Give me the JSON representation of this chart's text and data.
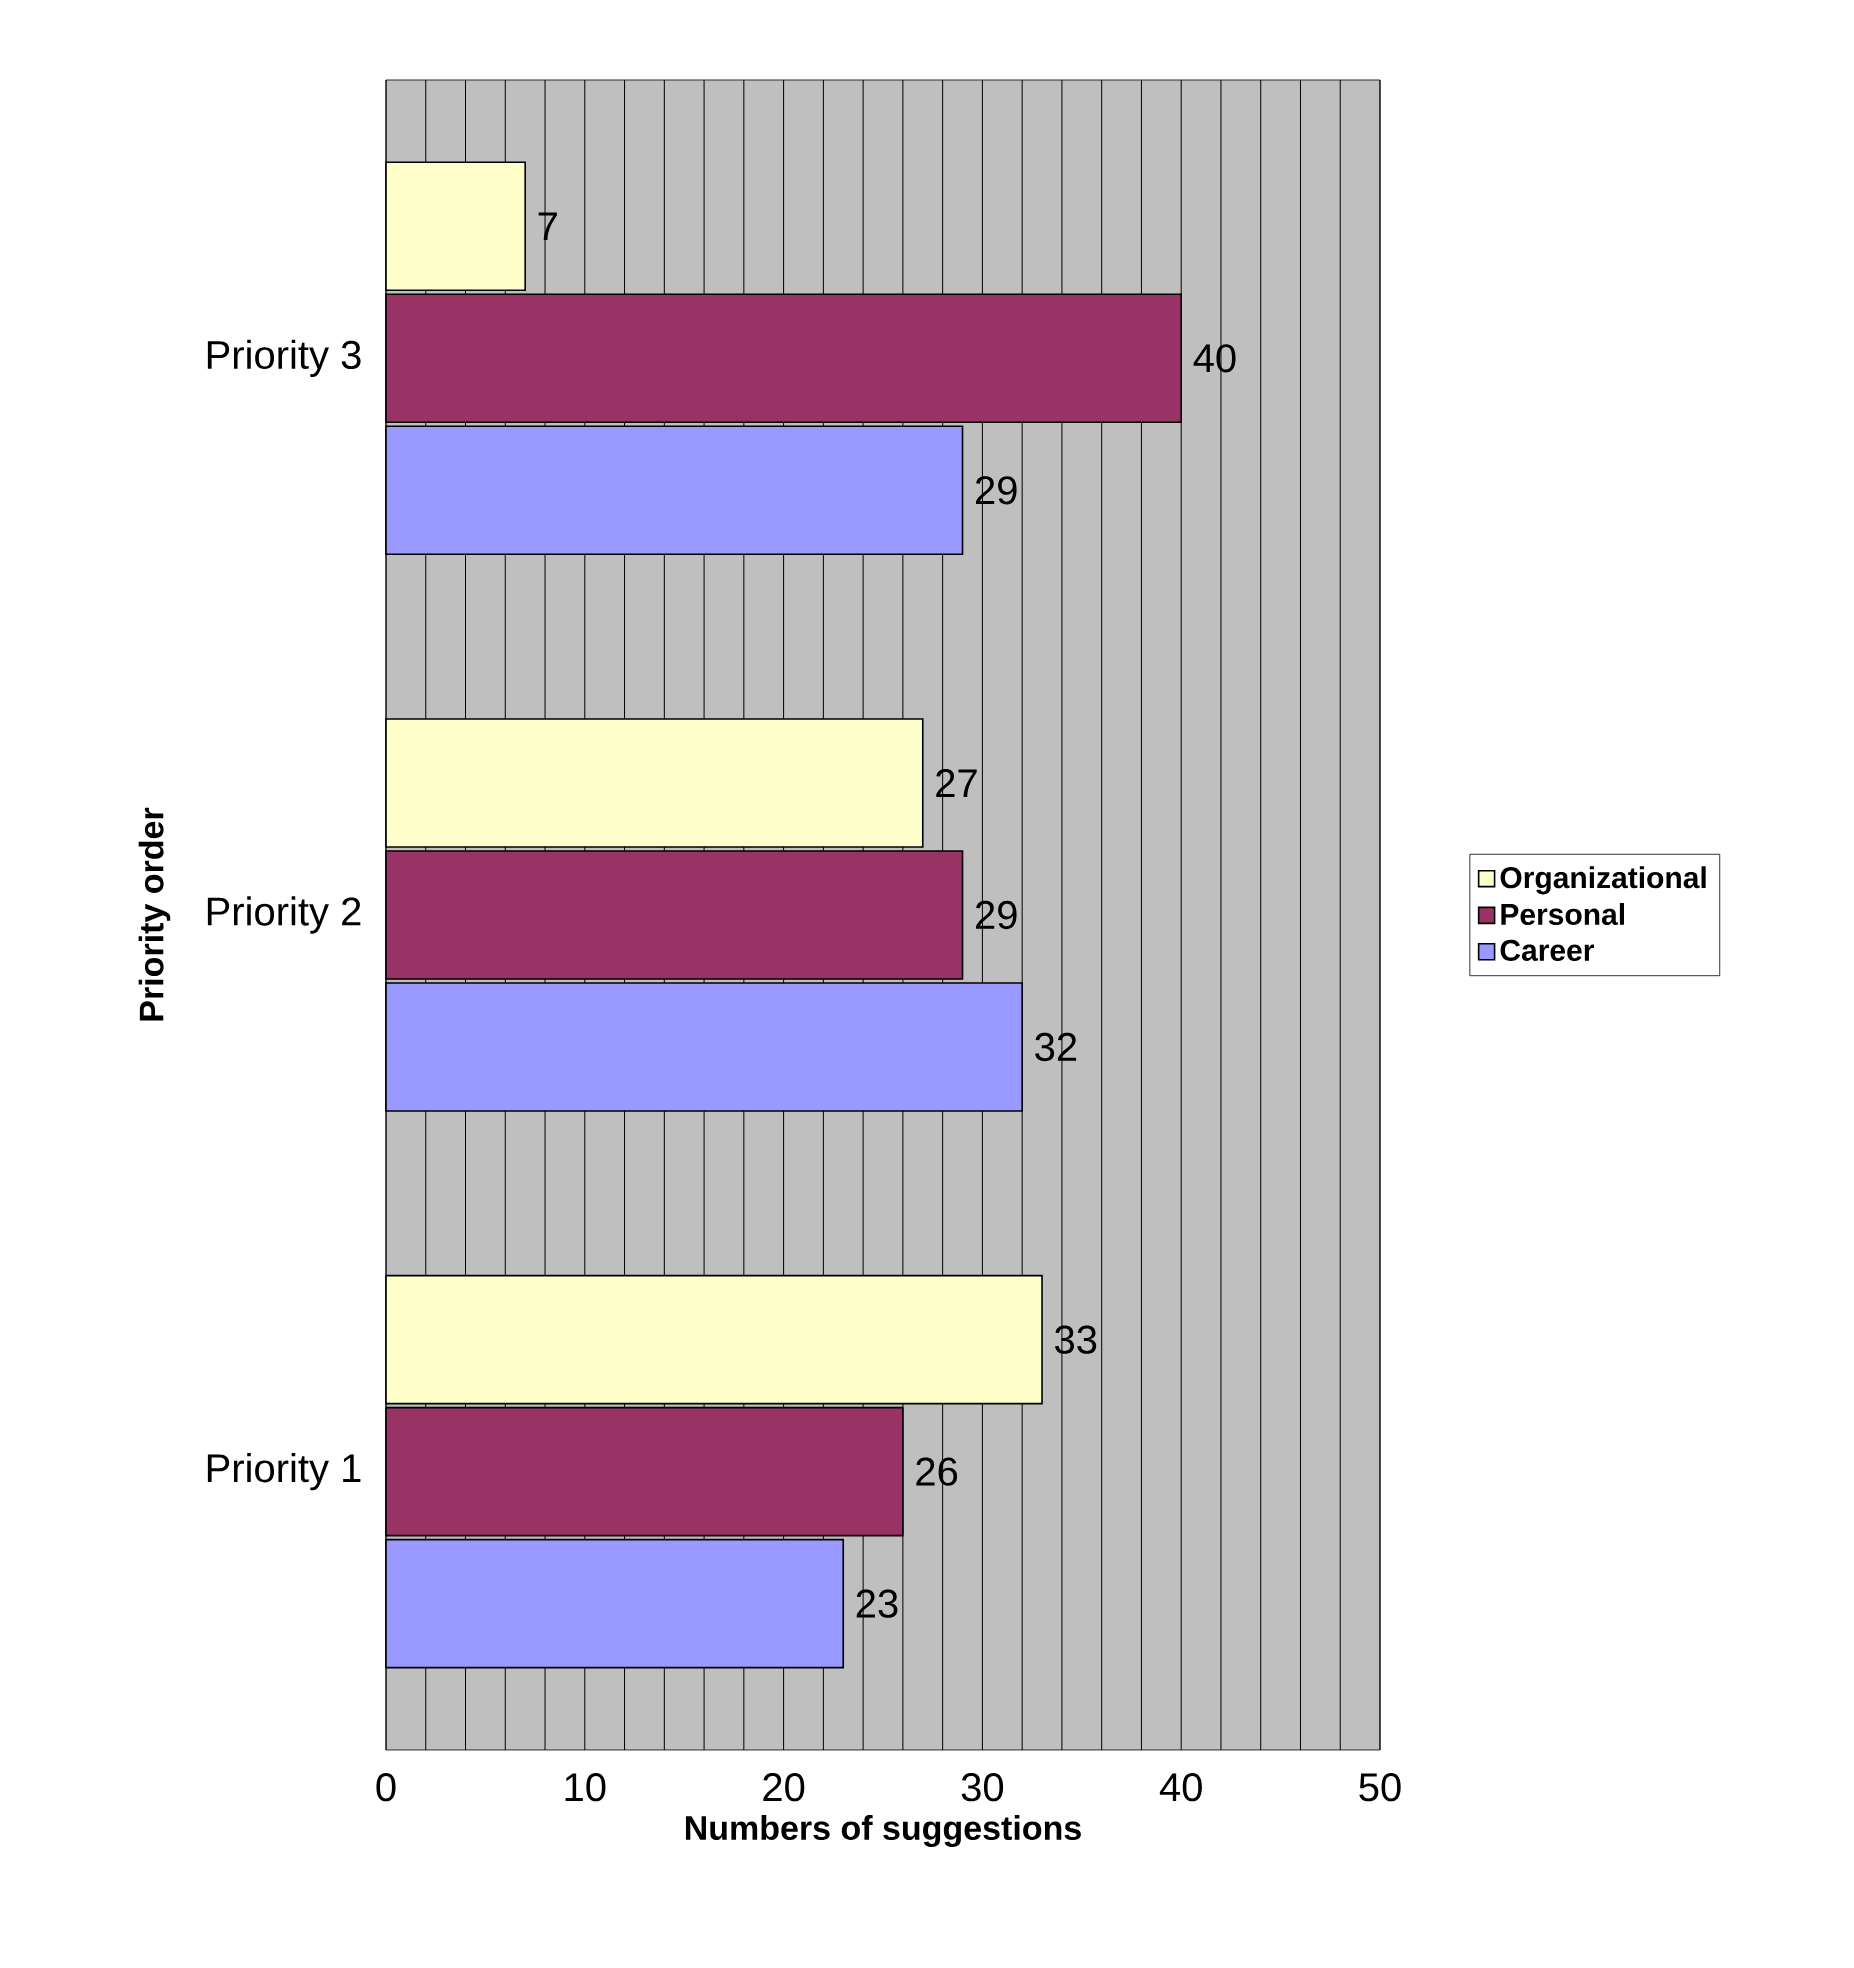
{
  "chart_data": {
    "type": "bar",
    "orientation": "horizontal",
    "xlabel": "Numbers of suggestions",
    "ylabel": "Priority order",
    "categories": [
      "Priority 3",
      "Priority 2",
      "Priority 1"
    ],
    "series": [
      {
        "name": "Organizational",
        "color": "#ffffcc",
        "values": [
          7,
          27,
          33
        ]
      },
      {
        "name": "Personal",
        "color": "#993366",
        "values": [
          40,
          29,
          26
        ]
      },
      {
        "name": "Career",
        "color": "#9999ff",
        "values": [
          29,
          32,
          23
        ]
      }
    ],
    "xlim": [
      0,
      50
    ],
    "xticks": [
      0,
      10,
      20,
      30,
      40,
      50
    ],
    "grid": "x",
    "legend": "right",
    "data_labels": true
  }
}
